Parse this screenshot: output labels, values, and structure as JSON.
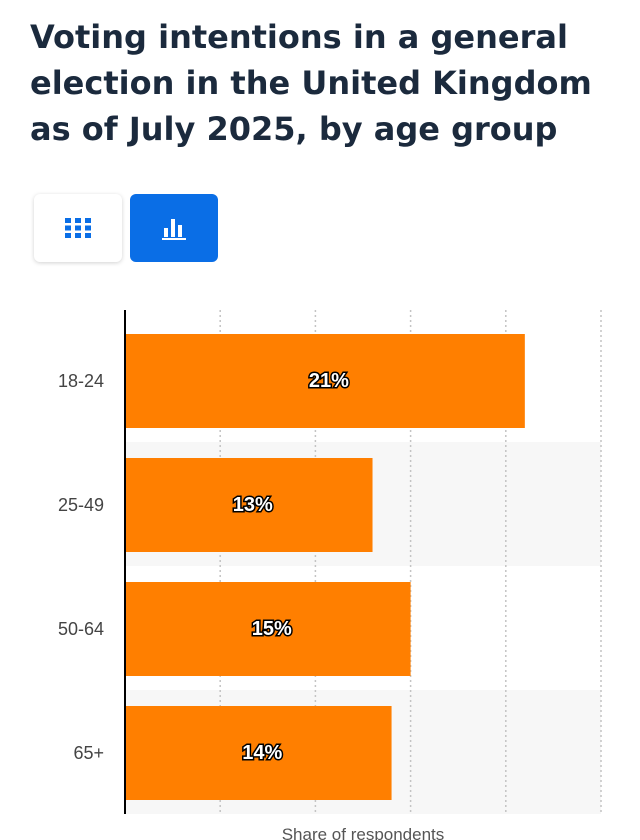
{
  "title": "Voting intentions in a general election in the United Kingdom as of July 2025, by age group",
  "toolbar": {
    "table_icon": "grid-table-icon",
    "chart_icon": "bar-chart-icon",
    "active_color": "#0a6ee6"
  },
  "chart_data": {
    "type": "bar",
    "orientation": "horizontal",
    "categories": [
      "18-24",
      "25-49",
      "50-64",
      "65+"
    ],
    "values": [
      21,
      13,
      15,
      14
    ],
    "value_labels": [
      "21%",
      "13%",
      "15%",
      "14%"
    ],
    "xlabel": "Share of respondents",
    "ylabel": "",
    "xlim": [
      0,
      25
    ],
    "grid": true,
    "bar_color": "#ff7f00"
  }
}
